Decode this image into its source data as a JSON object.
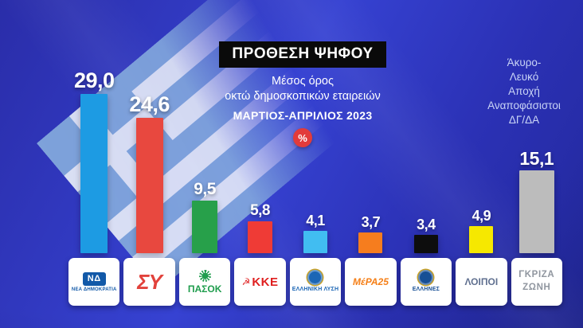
{
  "header": {
    "title": "ΠΡΟΘΕΣΗ ΨΗΦΟΥ",
    "subtitle_line1": "Μέσος όρος",
    "subtitle_line2": "οκτώ δημοσκοπικών εταιρειών",
    "period": "ΜΑΡΤΙΟΣ-ΑΠΡΙΛΙΟΣ 2023",
    "percent_badge": "%"
  },
  "right_note": {
    "lines": [
      "Άκυρο-",
      "Λευκό",
      "Αποχή",
      "Αναποφάσιστοι",
      "ΔΓ/ΔΑ"
    ]
  },
  "chart_data": {
    "type": "bar",
    "title": "ΠΡΟΘΕΣΗ ΨΗΦΟΥ",
    "subtitle": "Μέσος όρος οκτώ δημοσκοπικών εταιρειών",
    "period": "ΜΑΡΤΙΟΣ-ΑΠΡΙΛΙΟΣ 2023",
    "unit": "%",
    "grid": false,
    "ylim": [
      0,
      30
    ],
    "legend_position": "bottom-logos",
    "categories": [
      "ΝΕΑ ΔΗΜΟΚΡΑΤΙΑ",
      "ΣΥΡΙΖΑ",
      "ΠΑΣΟΚ",
      "ΚΚΕ",
      "ΕΛΛΗΝΙΚΗ ΛΥΣΗ",
      "ΜέΡΑ25",
      "ΕΛΛΗΝΕΣ",
      "ΛΟΙΠΟΙ",
      "ΓΚΡΙΖΑ ΖΩΝΗ"
    ],
    "values": [
      29.0,
      24.6,
      9.5,
      5.8,
      4.1,
      3.7,
      3.4,
      4.9,
      15.1
    ],
    "value_labels": [
      "29,0",
      "24,6",
      "9,5",
      "5,8",
      "4,1",
      "3,7",
      "3,4",
      "4,9",
      "15,1"
    ],
    "bar_colors": [
      "#1d9be3",
      "#e8483f",
      "#27a04a",
      "#ef3b36",
      "#41bdf1",
      "#f67d1e",
      "#0d0d0d",
      "#f6e800",
      "#bcbcbc"
    ]
  },
  "parties": [
    {
      "name": "ΝΕΑ ΔΗΜΟΚΡΑΤΙΑ",
      "logo": {
        "kind": "nd",
        "icon": "nea-dimokratia-flag-icon",
        "emblem_text": "ΝΔ",
        "sub": "ΝΕΑ ΔΗΜΟΚΡΑΤΙΑ",
        "color": "#1259a8"
      }
    },
    {
      "name": "ΣΥΡΙΖΑ",
      "logo": {
        "kind": "big",
        "main": "ΣΥ",
        "color": "#e2423c"
      }
    },
    {
      "name": "ΠΑΣΟΚ",
      "logo": {
        "kind": "sun",
        "icon": "pasok-sun-icon",
        "main": "ΠΑΣΟΚ",
        "color": "#1f9d4d"
      }
    },
    {
      "name": "ΚΚΕ",
      "logo": {
        "kind": "kke",
        "icon": "hammer-sickle-icon",
        "emblem_text": "☭",
        "main": "ΚΚΕ",
        "color": "#df1f1f"
      }
    },
    {
      "name": "ΕΛΛΗΝΙΚΗ ΛΥΣΗ",
      "logo": {
        "kind": "circle",
        "icon": "elliniki-lysi-emblem-icon",
        "sub": "ΕΛΛΗΝΙΚΗ ΛΥΣΗ",
        "color": "#1b66b5"
      }
    },
    {
      "name": "ΜέΡΑ25",
      "logo": {
        "kind": "plain",
        "italic": true,
        "main": "ΜέΡΑ25",
        "color": "#f57f17"
      }
    },
    {
      "name": "ΕΛΛΗΝΕΣ",
      "logo": {
        "kind": "circle",
        "icon": "ellines-emblem-icon",
        "sub": "ΕΛΛΗΝΕΣ",
        "color": "#174f95"
      }
    },
    {
      "name": "ΛΟΙΠΟΙ",
      "logo": {
        "kind": "plain",
        "italic": false,
        "main": "ΛΟΙΠΟΙ",
        "color": "#5f6f8f"
      }
    },
    {
      "name": "ΓΚΡΙΖΑ ΖΩΝΗ",
      "logo": {
        "kind": "two-line",
        "main": "ΓΚΡΙΖΑ",
        "sub": "ΖΩΝΗ",
        "color": "#90969f"
      }
    }
  ],
  "theme": {
    "background_color": "#2b30b8",
    "title_box_bg": "#0a0a0a",
    "percent_badge_color": "#e23b3b",
    "value_label_color": "#ffffff",
    "note_text_color": "#c9d4f6",
    "logo_box_bg": "#ffffff",
    "flag_blue": "#87aede",
    "flag_white": "#edf2fa"
  }
}
